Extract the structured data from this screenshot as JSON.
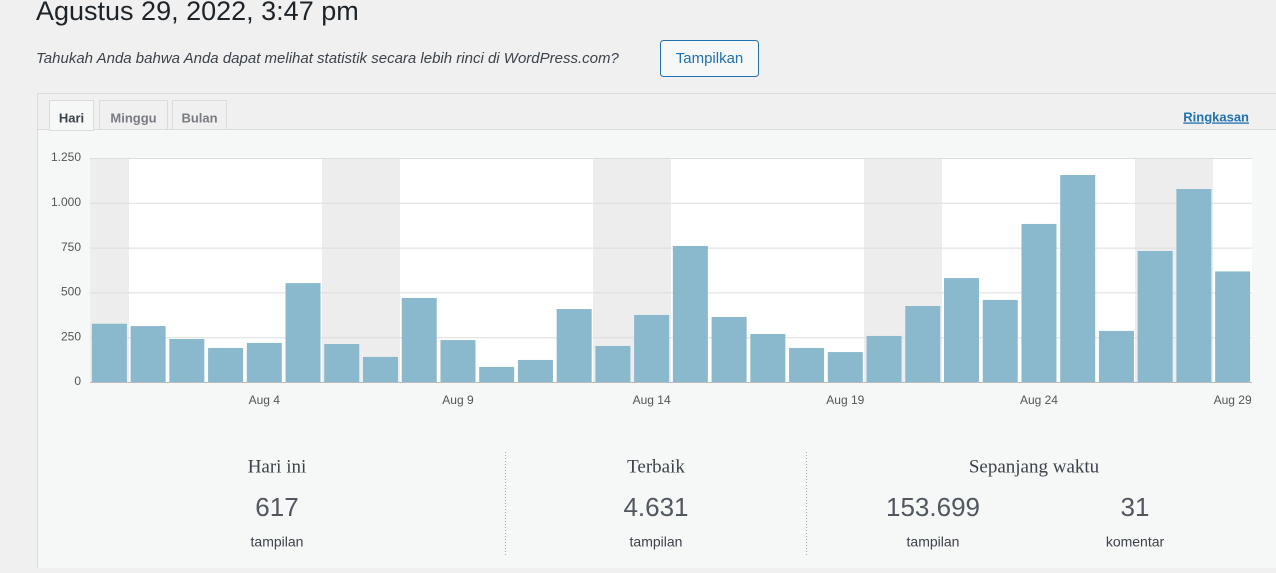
{
  "header": {
    "title": "Agustus 29, 2022, 3:47 pm"
  },
  "notice": {
    "text": "Tahukah Anda bahwa Anda dapat melihat statistik secara lebih rinci di WordPress.com?",
    "button": "Tampilkan"
  },
  "tabs": [
    "Hari",
    "Minggu",
    "Bulan"
  ],
  "summary_link": "Ringkasan",
  "chart_data": {
    "type": "bar",
    "categories": [
      null,
      null,
      null,
      null,
      "Aug 4",
      null,
      null,
      null,
      null,
      "Aug 9",
      null,
      null,
      null,
      null,
      "Aug 14",
      null,
      null,
      null,
      null,
      "Aug 19",
      null,
      null,
      null,
      null,
      "Aug 24",
      null,
      null,
      null,
      null,
      "Aug 29"
    ],
    "values": [
      325,
      312,
      240,
      190,
      218,
      552,
      212,
      140,
      469,
      234,
      84,
      123,
      407,
      201,
      374,
      759,
      363,
      268,
      190,
      167,
      257,
      424,
      580,
      458,
      882,
      1155,
      285,
      731,
      1077,
      617
    ],
    "color": "#8ab8cc",
    "ylim": [
      0,
      1250
    ],
    "yticks": [
      0,
      250,
      500,
      750,
      {
        "value": 1000,
        "label": "1.000"
      },
      {
        "value": 1250,
        "label": "1.250"
      }
    ],
    "grid": true
  },
  "stats": {
    "today": {
      "label": "Hari ini",
      "value": "617",
      "unit": "tampilan"
    },
    "best": {
      "label": "Terbaik",
      "value": "4.631",
      "unit": "tampilan"
    },
    "all_time": {
      "label": "Sepanjang waktu",
      "views": "153.699",
      "views_unit": "tampilan",
      "comments": "31",
      "comments_unit": "komentar"
    }
  }
}
